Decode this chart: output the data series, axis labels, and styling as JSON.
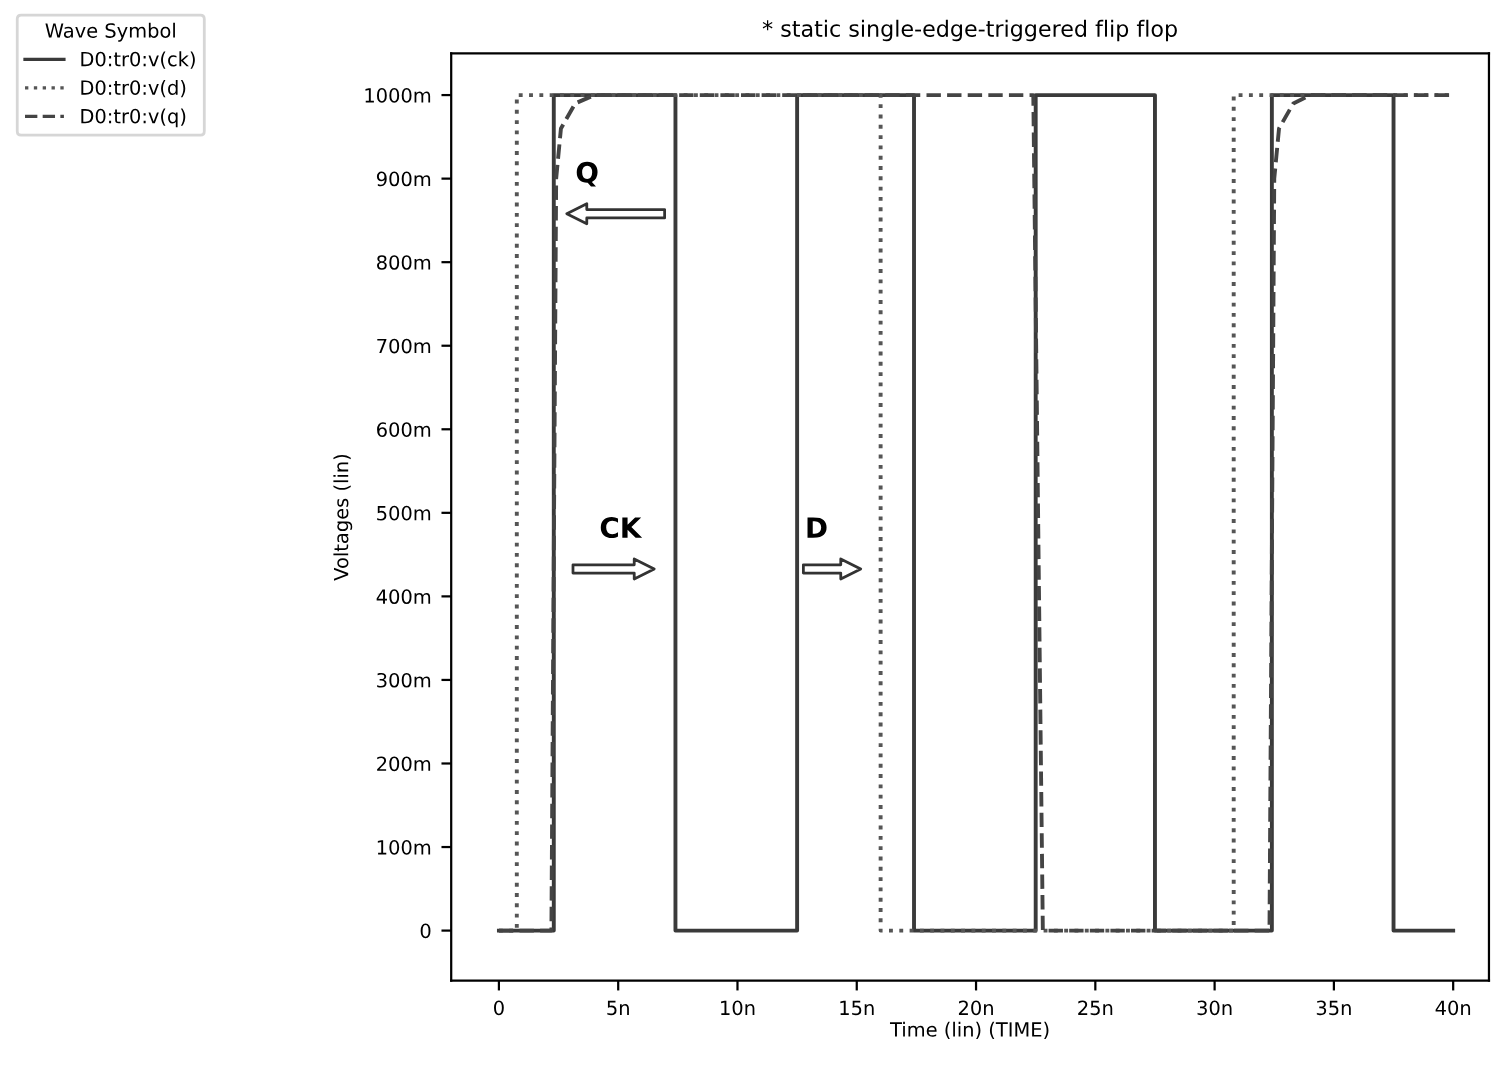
{
  "chart_data": {
    "type": "step",
    "title": "* static single-edge-triggered flip flop",
    "xlabel": "Time (lin) (TIME)",
    "ylabel": "Voltages (lin)",
    "legend_title": "Wave Symbol",
    "legend": "top left",
    "grid": false,
    "xlim": [
      -2,
      41.5
    ],
    "ylim": [
      -60,
      1050
    ],
    "xticks": [
      {
        "value": 0,
        "label": "0"
      },
      {
        "value": 5,
        "label": "5n"
      },
      {
        "value": 10,
        "label": "10n"
      },
      {
        "value": 15,
        "label": "15n"
      },
      {
        "value": 20,
        "label": "20n"
      },
      {
        "value": 25,
        "label": "25n"
      },
      {
        "value": 30,
        "label": "30n"
      },
      {
        "value": 35,
        "label": "35n"
      },
      {
        "value": 40,
        "label": "40n"
      }
    ],
    "yticks": [
      0,
      {
        "value": 100,
        "label": "100m"
      },
      {
        "value": 200,
        "label": "200m"
      },
      {
        "value": 300,
        "label": "300m"
      },
      {
        "value": 400,
        "label": "400m"
      },
      {
        "value": 500,
        "label": "500m"
      },
      {
        "value": 600,
        "label": "600m"
      },
      {
        "value": 700,
        "label": "700m"
      },
      {
        "value": 800,
        "label": "800m"
      },
      {
        "value": 900,
        "label": "900m"
      },
      {
        "value": 1000,
        "label": "1000m"
      }
    ],
    "series": [
      {
        "name": "D0:tr0:v(ck)",
        "color": "#3a3a3a",
        "line_style": "solid",
        "x": [
          0,
          2.3,
          2.3,
          7.4,
          7.4,
          12.5,
          12.5,
          17.4,
          17.4,
          22.5,
          22.5,
          27.5,
          27.5,
          32.4,
          32.4,
          37.5,
          37.5,
          40
        ],
        "values": [
          0,
          0,
          1000,
          1000,
          0,
          0,
          1000,
          1000,
          0,
          0,
          1000,
          1000,
          0,
          0,
          1000,
          1000,
          0,
          0
        ]
      },
      {
        "name": "D0:tr0:v(d)",
        "color": "#555555",
        "line_style": "dotted",
        "x": [
          0,
          0.75,
          0.75,
          16,
          16,
          30.8,
          30.8,
          40
        ],
        "values": [
          0,
          0,
          1000,
          1000,
          0,
          0,
          1000,
          1000
        ]
      },
      {
        "name": "D0:tr0:v(q)",
        "color": "#444444",
        "line_style": "dashed",
        "x": [
          0,
          2.2,
          2.4,
          2.6,
          3.2,
          4,
          22.4,
          22.8,
          32.3,
          32.5,
          32.7,
          33.3,
          34,
          40
        ],
        "values": [
          0,
          0,
          900,
          960,
          990,
          1000,
          1000,
          0,
          0,
          900,
          960,
          990,
          1000,
          1000
        ]
      }
    ],
    "annotations": [
      "Q",
      "CK",
      "D"
    ]
  }
}
